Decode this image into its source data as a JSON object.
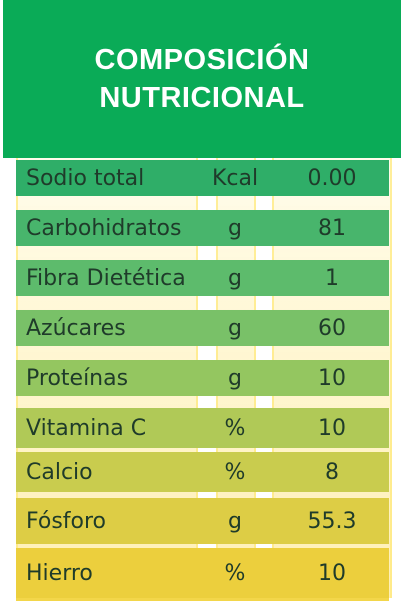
{
  "header": {
    "line1": "COMPOSICIÓN",
    "line2": "NUTRICIONAL"
  },
  "rows": [
    {
      "name": "Sodio total",
      "unit": "Kcal",
      "value": "0.00"
    },
    {
      "name": "Carbohidratos",
      "unit": "g",
      "value": "81"
    },
    {
      "name": "Fibra Dietética",
      "unit": "g",
      "value": "1"
    },
    {
      "name": "Azúcares",
      "unit": "g",
      "value": "60"
    },
    {
      "name": "Proteínas",
      "unit": "g",
      "value": "10"
    },
    {
      "name": "Vitamina C",
      "unit": "%",
      "value": "10"
    },
    {
      "name": "Calcio",
      "unit": "%",
      "value": "8"
    },
    {
      "name": "Fósforo",
      "unit": "g",
      "value": "55.3"
    },
    {
      "name": "Hierro",
      "unit": "%",
      "value": "10"
    }
  ],
  "colors": {
    "header_green": "#0aab57",
    "row_green_top": "#2fb370",
    "row_yellow_bottom": "#f3d238",
    "text": "#1f3b2a"
  }
}
